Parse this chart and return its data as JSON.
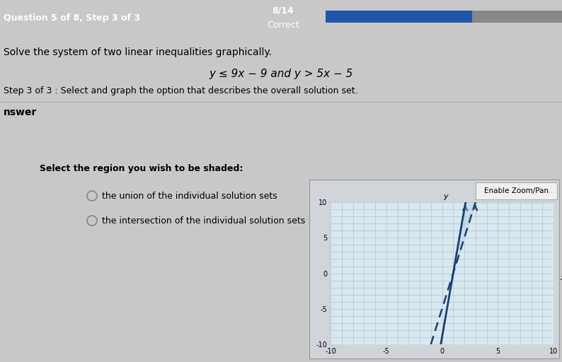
{
  "title_bar_text": "Question 5 of 8, Step 3 of 3",
  "score_line1": "8/14",
  "score_line2": "Correct",
  "problem_text": "Solve the system of two linear inequalities graphically.",
  "inequality_text": "y ≤ 9x − 9 and y > 5x − 5",
  "step_text": "Step 3 of 3 : Select and graph the option that describes the overall solution set.",
  "answer_label": "nswer",
  "select_text": "Select the region you wish to be shaded:",
  "enable_zoom_text": "Enable Zoom/Pan",
  "option1": "the union of the individual solution sets",
  "option2": "the intersection of the individual solution sets",
  "xmin": -10,
  "xmax": 10,
  "ymin": -10,
  "ymax": 10,
  "line1_slope": 9,
  "line1_intercept": -9,
  "line1_solid": true,
  "line1_color": "#1e3f6e",
  "line2_slope": 5,
  "line2_intercept": -5,
  "line2_solid": false,
  "line2_color": "#1e3f6e",
  "shade_color": "#b8cfe8",
  "shade_alpha": 0.45,
  "bg_color": "#c8c8c8",
  "panel_bg": "#e2e2e2",
  "graph_bg": "#d8e8f0",
  "graph_border_color": "#999999",
  "grid_color": "#b0b8c0",
  "progress_bar_color": "#2255aa",
  "progress_bar_bg": "#888888",
  "top_bar_bg": "#1a1a1a",
  "divider_color": "#aaaaaa",
  "btn_bg": "#f0f0f0",
  "btn_border": "#aaaaaa"
}
